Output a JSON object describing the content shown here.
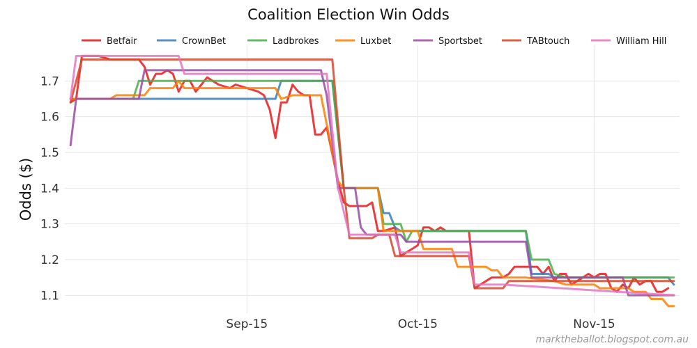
{
  "chart_data": {
    "type": "line",
    "title": "Coalition Election Win Odds",
    "xlabel": "",
    "ylabel": "Odds ($)",
    "x_tick_labels": [
      "Sep-15",
      "Oct-15",
      "Nov-15"
    ],
    "x_tick_dates": [
      "2015-09-15",
      "2015-10-15",
      "2015-11-15"
    ],
    "y_ticks": [
      1.1,
      1.2,
      1.3,
      1.4,
      1.5,
      1.6,
      1.7
    ],
    "y_tick_labels": [
      "1.1",
      "1.2",
      "1.3",
      "1.4",
      "1.5",
      "1.6",
      "1.7"
    ],
    "xlim": [
      "2015-08-14",
      "2015-11-30"
    ],
    "ylim": [
      1.05,
      1.8
    ],
    "grid": true,
    "legend_position": "top",
    "series": [
      {
        "name": "Betfair",
        "color": "#e41a1c",
        "points": [
          [
            "2015-08-15",
            1.64
          ],
          [
            "2015-08-16",
            1.65
          ],
          [
            "2015-08-17",
            1.77
          ],
          [
            "2015-08-20",
            1.77
          ],
          [
            "2015-08-22",
            1.76
          ],
          [
            "2015-08-27",
            1.76
          ],
          [
            "2015-08-28",
            1.74
          ],
          [
            "2015-08-29",
            1.69
          ],
          [
            "2015-08-30",
            1.72
          ],
          [
            "2015-08-31",
            1.72
          ],
          [
            "2015-09-01",
            1.73
          ],
          [
            "2015-09-02",
            1.72
          ],
          [
            "2015-09-03",
            1.67
          ],
          [
            "2015-09-04",
            1.7
          ],
          [
            "2015-09-05",
            1.7
          ],
          [
            "2015-09-06",
            1.67
          ],
          [
            "2015-09-07",
            1.69
          ],
          [
            "2015-09-08",
            1.71
          ],
          [
            "2015-09-09",
            1.7
          ],
          [
            "2015-09-10",
            1.69
          ],
          [
            "2015-09-12",
            1.68
          ],
          [
            "2015-09-13",
            1.69
          ],
          [
            "2015-09-15",
            1.68
          ],
          [
            "2015-09-17",
            1.67
          ],
          [
            "2015-09-18",
            1.66
          ],
          [
            "2015-09-19",
            1.62
          ],
          [
            "2015-09-20",
            1.54
          ],
          [
            "2015-09-21",
            1.64
          ],
          [
            "2015-09-22",
            1.64
          ],
          [
            "2015-09-23",
            1.69
          ],
          [
            "2015-09-24",
            1.67
          ],
          [
            "2015-09-25",
            1.66
          ],
          [
            "2015-09-26",
            1.66
          ],
          [
            "2015-09-27",
            1.55
          ],
          [
            "2015-09-28",
            1.55
          ],
          [
            "2015-09-29",
            1.57
          ],
          [
            "2015-10-01",
            1.42
          ],
          [
            "2015-10-02",
            1.36
          ],
          [
            "2015-10-03",
            1.35
          ],
          [
            "2015-10-06",
            1.35
          ],
          [
            "2015-10-07",
            1.36
          ],
          [
            "2015-10-08",
            1.28
          ],
          [
            "2015-10-09",
            1.28
          ],
          [
            "2015-10-11",
            1.29
          ],
          [
            "2015-10-12",
            1.21
          ],
          [
            "2015-10-13",
            1.22
          ],
          [
            "2015-10-14",
            1.23
          ],
          [
            "2015-10-15",
            1.24
          ],
          [
            "2015-10-16",
            1.29
          ],
          [
            "2015-10-17",
            1.29
          ],
          [
            "2015-10-18",
            1.28
          ],
          [
            "2015-10-19",
            1.29
          ],
          [
            "2015-10-20",
            1.28
          ],
          [
            "2015-10-21",
            1.28
          ],
          [
            "2015-10-24",
            1.28
          ],
          [
            "2015-10-25",
            1.12
          ],
          [
            "2015-10-26",
            1.13
          ],
          [
            "2015-10-27",
            1.14
          ],
          [
            "2015-10-28",
            1.15
          ],
          [
            "2015-10-29",
            1.15
          ],
          [
            "2015-10-30",
            1.15
          ],
          [
            "2015-10-31",
            1.16
          ],
          [
            "2015-11-01",
            1.18
          ],
          [
            "2015-11-05",
            1.18
          ],
          [
            "2015-11-06",
            1.16
          ],
          [
            "2015-11-07",
            1.18
          ],
          [
            "2015-11-08",
            1.14
          ],
          [
            "2015-11-09",
            1.16
          ],
          [
            "2015-11-10",
            1.16
          ],
          [
            "2015-11-11",
            1.13
          ],
          [
            "2015-11-12",
            1.14
          ],
          [
            "2015-11-13",
            1.15
          ],
          [
            "2015-11-14",
            1.16
          ],
          [
            "2015-11-15",
            1.15
          ],
          [
            "2015-11-16",
            1.16
          ],
          [
            "2015-11-17",
            1.16
          ],
          [
            "2015-11-18",
            1.12
          ],
          [
            "2015-11-19",
            1.11
          ],
          [
            "2015-11-20",
            1.13
          ],
          [
            "2015-11-21",
            1.12
          ],
          [
            "2015-11-22",
            1.15
          ],
          [
            "2015-11-23",
            1.13
          ],
          [
            "2015-11-24",
            1.14
          ],
          [
            "2015-11-25",
            1.14
          ],
          [
            "2015-11-26",
            1.11
          ],
          [
            "2015-11-27",
            1.11
          ],
          [
            "2015-11-28",
            1.12
          ]
        ]
      },
      {
        "name": "CrownBet",
        "color": "#377eb8",
        "points": [
          [
            "2015-08-15",
            1.65
          ],
          [
            "2015-08-26",
            1.65
          ],
          [
            "2015-08-27",
            1.65
          ],
          [
            "2015-09-02",
            1.65
          ],
          [
            "2015-09-03",
            1.65
          ],
          [
            "2015-09-20",
            1.65
          ],
          [
            "2015-09-21",
            1.7
          ],
          [
            "2015-09-30",
            1.7
          ],
          [
            "2015-10-02",
            1.4
          ],
          [
            "2015-10-04",
            1.4
          ],
          [
            "2015-10-05",
            1.4
          ],
          [
            "2015-10-07",
            1.4
          ],
          [
            "2015-10-08",
            1.4
          ],
          [
            "2015-10-09",
            1.33
          ],
          [
            "2015-10-10",
            1.33
          ],
          [
            "2015-10-11",
            1.29
          ],
          [
            "2015-10-12",
            1.28
          ],
          [
            "2015-10-15",
            1.28
          ],
          [
            "2015-11-03",
            1.28
          ],
          [
            "2015-11-04",
            1.16
          ],
          [
            "2015-11-07",
            1.16
          ],
          [
            "2015-11-08",
            1.15
          ],
          [
            "2015-11-28",
            1.15
          ],
          [
            "2015-11-29",
            1.13
          ]
        ]
      },
      {
        "name": "Ladbrokes",
        "color": "#4daf4a",
        "points": [
          [
            "2015-08-15",
            1.65
          ],
          [
            "2015-08-26",
            1.65
          ],
          [
            "2015-08-27",
            1.7
          ],
          [
            "2015-09-30",
            1.7
          ],
          [
            "2015-10-02",
            1.4
          ],
          [
            "2015-10-08",
            1.4
          ],
          [
            "2015-10-09",
            1.3
          ],
          [
            "2015-10-12",
            1.3
          ],
          [
            "2015-10-13",
            1.25
          ],
          [
            "2015-10-14",
            1.28
          ],
          [
            "2015-11-03",
            1.28
          ],
          [
            "2015-11-04",
            1.2
          ],
          [
            "2015-11-07",
            1.2
          ],
          [
            "2015-11-08",
            1.16
          ],
          [
            "2015-11-10",
            1.15
          ],
          [
            "2015-11-29",
            1.15
          ]
        ]
      },
      {
        "name": "Luxbet",
        "color": "#ff7f00",
        "points": [
          [
            "2015-08-15",
            1.65
          ],
          [
            "2015-08-22",
            1.65
          ],
          [
            "2015-08-23",
            1.66
          ],
          [
            "2015-08-28",
            1.66
          ],
          [
            "2015-08-29",
            1.68
          ],
          [
            "2015-09-02",
            1.68
          ],
          [
            "2015-09-03",
            1.7
          ],
          [
            "2015-09-04",
            1.68
          ],
          [
            "2015-09-20",
            1.68
          ],
          [
            "2015-09-21",
            1.65
          ],
          [
            "2015-09-23",
            1.66
          ],
          [
            "2015-09-28",
            1.66
          ],
          [
            "2015-10-01",
            1.42
          ],
          [
            "2015-10-02",
            1.4
          ],
          [
            "2015-10-08",
            1.4
          ],
          [
            "2015-10-09",
            1.28
          ],
          [
            "2015-10-12",
            1.28
          ],
          [
            "2015-10-13",
            1.28
          ],
          [
            "2015-10-15",
            1.28
          ],
          [
            "2015-10-16",
            1.23
          ],
          [
            "2015-10-20",
            1.23
          ],
          [
            "2015-10-21",
            1.23
          ],
          [
            "2015-10-22",
            1.18
          ],
          [
            "2015-10-27",
            1.18
          ],
          [
            "2015-10-28",
            1.17
          ],
          [
            "2015-10-29",
            1.17
          ],
          [
            "2015-10-30",
            1.15
          ],
          [
            "2015-11-03",
            1.15
          ],
          [
            "2015-11-08",
            1.14
          ],
          [
            "2015-11-10",
            1.13
          ],
          [
            "2015-11-15",
            1.13
          ],
          [
            "2015-11-16",
            1.12
          ],
          [
            "2015-11-21",
            1.12
          ],
          [
            "2015-11-22",
            1.11
          ],
          [
            "2015-11-24",
            1.11
          ],
          [
            "2015-11-25",
            1.09
          ],
          [
            "2015-11-27",
            1.09
          ],
          [
            "2015-11-28",
            1.07
          ],
          [
            "2015-11-29",
            1.07
          ]
        ]
      },
      {
        "name": "Sportsbet",
        "color": "#984ea3",
        "points": [
          [
            "2015-08-15",
            1.52
          ],
          [
            "2015-08-16",
            1.65
          ],
          [
            "2015-08-27",
            1.65
          ],
          [
            "2015-08-28",
            1.73
          ],
          [
            "2015-08-29",
            1.73
          ],
          [
            "2015-09-28",
            1.73
          ],
          [
            "2015-09-29",
            1.66
          ],
          [
            "2015-10-01",
            1.4
          ],
          [
            "2015-10-04",
            1.4
          ],
          [
            "2015-10-05",
            1.29
          ],
          [
            "2015-10-06",
            1.27
          ],
          [
            "2015-10-11",
            1.27
          ],
          [
            "2015-10-12",
            1.27
          ],
          [
            "2015-10-13",
            1.25
          ],
          [
            "2015-10-14",
            1.25
          ],
          [
            "2015-11-03",
            1.25
          ],
          [
            "2015-11-04",
            1.15
          ],
          [
            "2015-11-20",
            1.15
          ],
          [
            "2015-11-21",
            1.1
          ],
          [
            "2015-11-29",
            1.1
          ]
        ]
      },
      {
        "name": "TABtouch",
        "color": "#d6452a",
        "points": [
          [
            "2015-08-15",
            1.64
          ],
          [
            "2015-08-17",
            1.76
          ],
          [
            "2015-08-28",
            1.76
          ],
          [
            "2015-09-30",
            1.76
          ],
          [
            "2015-10-02",
            1.4
          ],
          [
            "2015-10-03",
            1.26
          ],
          [
            "2015-10-07",
            1.26
          ],
          [
            "2015-10-08",
            1.27
          ],
          [
            "2015-10-10",
            1.27
          ],
          [
            "2015-10-11",
            1.21
          ],
          [
            "2015-10-12",
            1.21
          ],
          [
            "2015-10-24",
            1.21
          ],
          [
            "2015-10-25",
            1.12
          ],
          [
            "2015-10-30",
            1.12
          ],
          [
            "2015-10-31",
            1.14
          ],
          [
            "2015-11-29",
            1.14
          ]
        ]
      },
      {
        "name": "William Hill",
        "color": "#e377c2",
        "points": [
          [
            "2015-08-15",
            1.65
          ],
          [
            "2015-08-16",
            1.77
          ],
          [
            "2015-09-03",
            1.77
          ],
          [
            "2015-09-04",
            1.72
          ],
          [
            "2015-09-29",
            1.72
          ],
          [
            "2015-10-01",
            1.4
          ],
          [
            "2015-10-03",
            1.27
          ],
          [
            "2015-10-06",
            1.27
          ],
          [
            "2015-10-11",
            1.27
          ],
          [
            "2015-10-12",
            1.22
          ],
          [
            "2015-10-14",
            1.22
          ],
          [
            "2015-10-15",
            1.22
          ],
          [
            "2015-10-16",
            1.22
          ],
          [
            "2015-10-18",
            1.22
          ],
          [
            "2015-10-24",
            1.22
          ],
          [
            "2015-10-25",
            1.13
          ],
          [
            "2015-10-29",
            1.13
          ],
          [
            "2015-10-30",
            1.13
          ],
          [
            "2015-11-29",
            1.1
          ]
        ]
      }
    ]
  },
  "watermark": "marktheballot.blogspot.com.au"
}
